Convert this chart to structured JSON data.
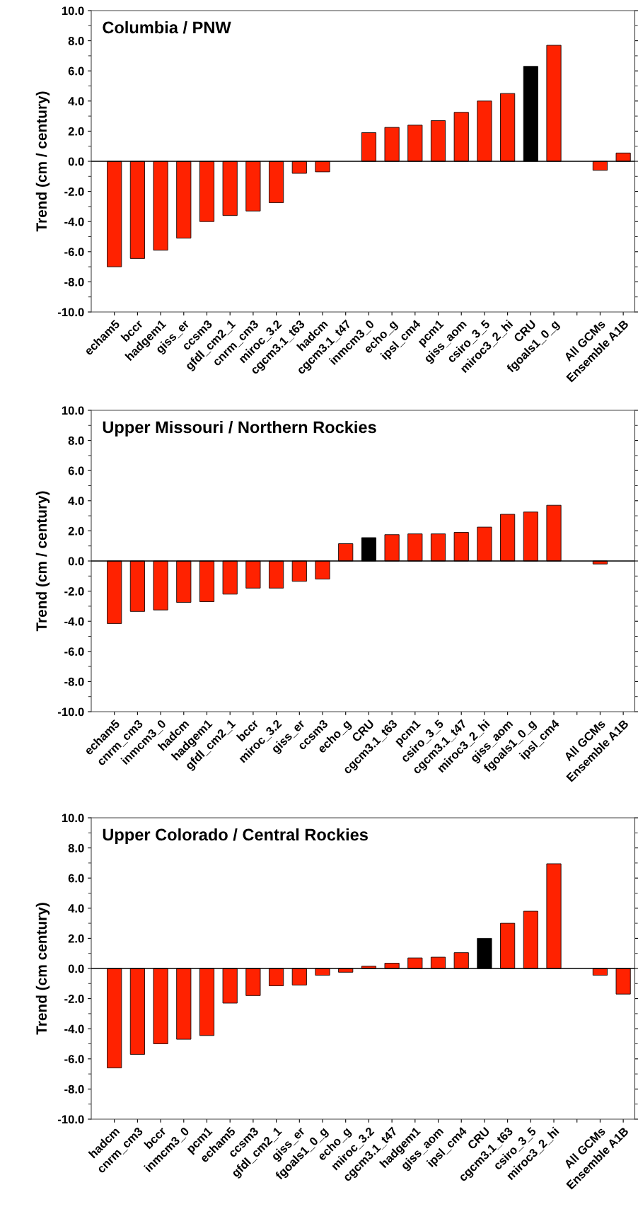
{
  "chart_data": [
    {
      "type": "bar",
      "title": "Columbia / PNW",
      "ylabel": "Trend (cm / century)",
      "categories": [
        "echam5",
        "bccr",
        "hadgem1",
        "giss_er",
        "ccsm3",
        "gfdl_cm2_1",
        "cnrm_cm3",
        "miroc_3.2",
        "cgcm3.1_t63",
        "hadcm",
        "cgcm3.1_t47",
        "inmcm3_0",
        "echo_g",
        "ipsl_cm4",
        "pcm1",
        "giss_aom",
        "csiro_3_5",
        "miroc3_2_hi",
        "CRU",
        "fgoals1_0_g",
        null,
        "All GCMs",
        "Ensemble A1B"
      ],
      "values": [
        -7.0,
        -6.45,
        -5.9,
        -5.1,
        -4.0,
        -3.6,
        -3.3,
        -2.75,
        -0.8,
        -0.7,
        null,
        1.9,
        2.25,
        2.4,
        2.7,
        3.25,
        4.0,
        4.5,
        6.3,
        7.7,
        null,
        -0.6,
        0.55
      ],
      "colors": [
        "#ff2200",
        "#ff2200",
        "#ff2200",
        "#ff2200",
        "#ff2200",
        "#ff2200",
        "#ff2200",
        "#ff2200",
        "#ff2200",
        "#ff2200",
        "#ff2200",
        "#ff2200",
        "#ff2200",
        "#ff2200",
        "#ff2200",
        "#ff2200",
        "#ff2200",
        "#ff2200",
        "#000000",
        "#ff2200",
        "#ff2200",
        "#ff2200",
        "#ff2200"
      ],
      "ylim": [
        -10,
        10
      ],
      "yticks": [
        {
          "value": -10,
          "label": "-10.0"
        },
        {
          "value": -8,
          "label": "-8.0"
        },
        {
          "value": -6,
          "label": "-6.0"
        },
        {
          "value": -4,
          "label": "-4.0"
        },
        {
          "value": -2,
          "label": "-2.0"
        },
        {
          "value": 0,
          "label": "0.0"
        },
        {
          "value": 2,
          "label": "2.0"
        },
        {
          "value": 4,
          "label": "4.0"
        },
        {
          "value": 6,
          "label": "6.0"
        },
        {
          "value": 8,
          "label": "8.0"
        },
        {
          "value": 10,
          "label": "10.0"
        }
      ],
      "ref_lines": [
        {
          "axis": "y",
          "value": 0,
          "color": "#000000"
        }
      ]
    },
    {
      "type": "bar",
      "title": "Upper Missouri / Northern Rockies",
      "ylabel": "Trend (cm / century)",
      "categories": [
        "echam5",
        "cnrm_cm3",
        "inmcm3_0",
        "hadcm",
        "hadgem1",
        "gfdl_cm2_1",
        "bccr",
        "miroc_3.2",
        "giss_er",
        "ccsm3",
        "echo_g",
        "CRU",
        "cgcm3.1_t63",
        "pcm1",
        "csiro_3_5",
        "cgcm3.1_t47",
        "miroc3_2_hi",
        "giss_aom",
        "fgoals1_0_g",
        "ipsl_cm4",
        null,
        "All GCMs",
        "Ensemble A1B"
      ],
      "values": [
        -4.15,
        -3.35,
        -3.25,
        -2.75,
        -2.7,
        -2.2,
        -1.8,
        -1.8,
        -1.35,
        -1.2,
        1.15,
        1.55,
        1.75,
        1.8,
        1.8,
        1.9,
        2.25,
        3.1,
        3.25,
        3.7,
        null,
        -0.2,
        null
      ],
      "colors": [
        "#ff2200",
        "#ff2200",
        "#ff2200",
        "#ff2200",
        "#ff2200",
        "#ff2200",
        "#ff2200",
        "#ff2200",
        "#ff2200",
        "#ff2200",
        "#ff2200",
        "#000000",
        "#ff2200",
        "#ff2200",
        "#ff2200",
        "#ff2200",
        "#ff2200",
        "#ff2200",
        "#ff2200",
        "#ff2200",
        "#ff2200",
        "#ff2200",
        "#ff2200"
      ],
      "ylim": [
        -10,
        10
      ],
      "yticks": [
        {
          "value": -10,
          "label": "-10.0"
        },
        {
          "value": -8,
          "label": "-8.0"
        },
        {
          "value": -6,
          "label": "-6.0"
        },
        {
          "value": -4,
          "label": "-4.0"
        },
        {
          "value": -2,
          "label": "-2.0"
        },
        {
          "value": 0,
          "label": "0.0"
        },
        {
          "value": 2,
          "label": "2.0"
        },
        {
          "value": 4,
          "label": "4.0"
        },
        {
          "value": 6,
          "label": "6.0"
        },
        {
          "value": 8,
          "label": "8.0"
        },
        {
          "value": 10,
          "label": "10.0"
        }
      ],
      "ref_lines": [
        {
          "axis": "y",
          "value": 0,
          "color": "#000000"
        }
      ]
    },
    {
      "type": "bar",
      "title": "Upper Colorado / Central Rockies",
      "ylabel": "Trend (cm century)",
      "categories": [
        "hadcm",
        "cnrm_cm3",
        "bccr",
        "inmcm3_0",
        "pcm1",
        "echam5",
        "ccsm3",
        "gfdl_cm2_1",
        "giss_er",
        "fgoals1_0_g",
        "echo_g",
        "miroc_3.2",
        "cgcm3.1_t47",
        "hadgem1",
        "giss_aom",
        "ipsl_cm4",
        "CRU",
        "cgcm3.1_t63",
        "csiro_3_5",
        "miroc3_2_hi",
        null,
        "All GCMs",
        "Ensemble A1B"
      ],
      "values": [
        -6.6,
        -5.7,
        -5.0,
        -4.7,
        -4.45,
        -2.3,
        -1.8,
        -1.15,
        -1.1,
        -0.45,
        -0.25,
        0.15,
        0.35,
        0.7,
        0.75,
        1.05,
        2.0,
        3.0,
        3.8,
        6.95,
        null,
        -0.45,
        -1.7
      ],
      "colors": [
        "#ff2200",
        "#ff2200",
        "#ff2200",
        "#ff2200",
        "#ff2200",
        "#ff2200",
        "#ff2200",
        "#ff2200",
        "#ff2200",
        "#ff2200",
        "#ff2200",
        "#ff2200",
        "#ff2200",
        "#ff2200",
        "#ff2200",
        "#ff2200",
        "#000000",
        "#ff2200",
        "#ff2200",
        "#ff2200",
        "#ff2200",
        "#ff2200",
        "#ff2200"
      ],
      "ylim": [
        -10,
        10
      ],
      "yticks": [
        {
          "value": -10,
          "label": "-10.0"
        },
        {
          "value": -8,
          "label": "-8.0"
        },
        {
          "value": -6,
          "label": "-6.0"
        },
        {
          "value": -4,
          "label": "-4.0"
        },
        {
          "value": -2,
          "label": "-2.0"
        },
        {
          "value": 0,
          "label": "0.0"
        },
        {
          "value": 2,
          "label": "2.0"
        },
        {
          "value": 4,
          "label": "4.0"
        },
        {
          "value": 6,
          "label": "6.0"
        },
        {
          "value": 8,
          "label": "8.0"
        },
        {
          "value": 10,
          "label": "10.0"
        }
      ],
      "ref_lines": [
        {
          "axis": "y",
          "value": 0,
          "color": "#000000"
        }
      ]
    }
  ]
}
